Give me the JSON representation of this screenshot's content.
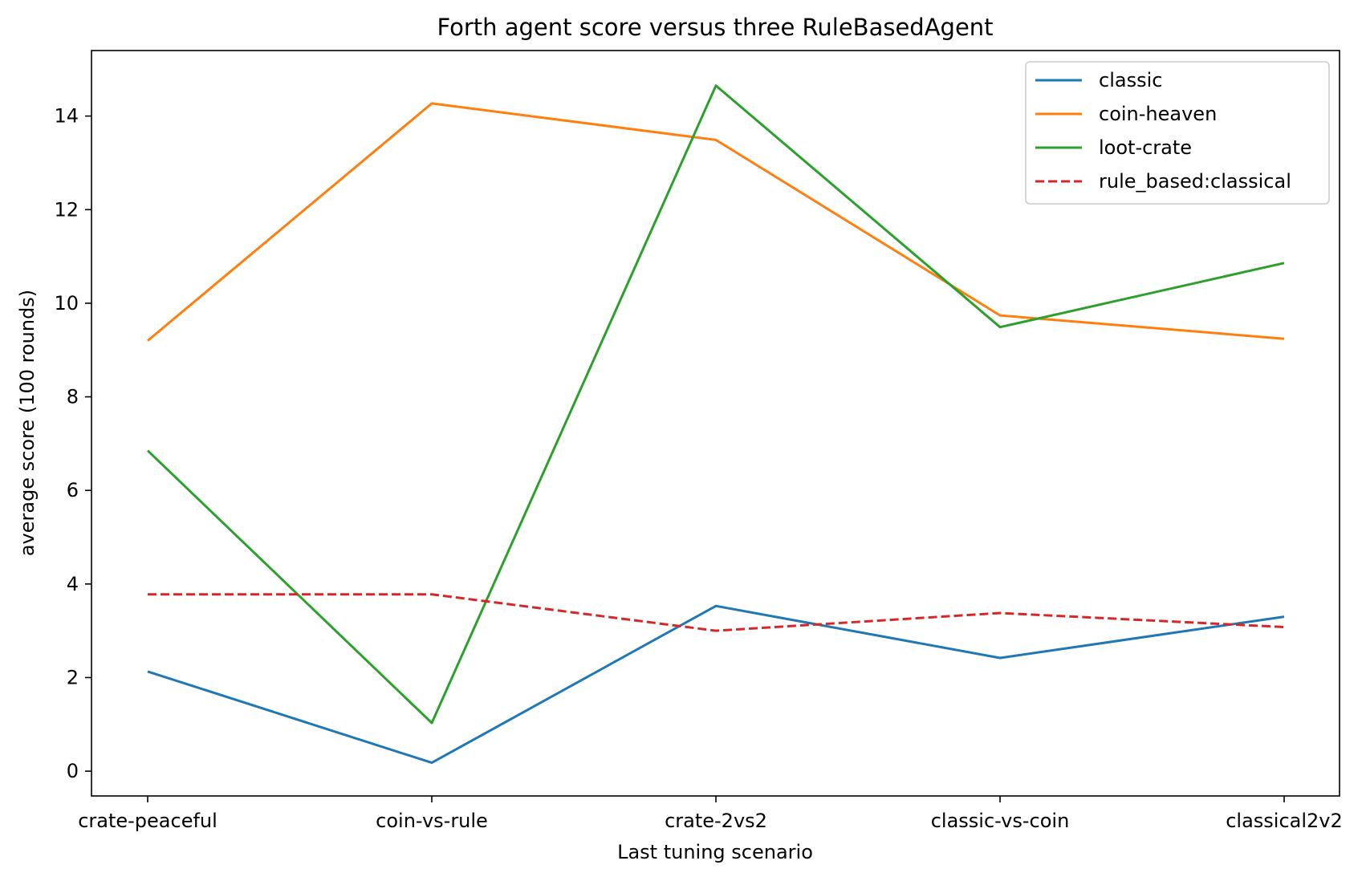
{
  "chart_data": {
    "type": "line",
    "title": "Forth agent score versus three RuleBasedAgent",
    "xlabel": "Last tuning scenario",
    "ylabel": "average score (100 rounds)",
    "categories": [
      "crate-peaceful",
      "coin-vs-rule",
      "crate-2vs2",
      "classic-vs-coin",
      "classical2v2"
    ],
    "ylim": [
      -0.53,
      15.4
    ],
    "yticks": [
      0,
      2,
      4,
      6,
      8,
      10,
      12,
      14
    ],
    "grid": false,
    "legend_position": "top-right",
    "series": [
      {
        "name": "classic",
        "color": "#1f77b4",
        "dash": "solid",
        "values": [
          2.13,
          0.18,
          3.53,
          2.42,
          3.3
        ]
      },
      {
        "name": "coin-heaven",
        "color": "#ff7f0e",
        "dash": "solid",
        "values": [
          9.2,
          14.27,
          13.49,
          9.74,
          9.24
        ]
      },
      {
        "name": "loot-crate",
        "color": "#2ca02c",
        "dash": "solid",
        "values": [
          6.85,
          1.03,
          14.65,
          9.49,
          10.86
        ]
      },
      {
        "name": "rule_based:classical",
        "color": "#d62728",
        "dash": "dashed",
        "values": [
          3.78,
          3.78,
          3.0,
          3.38,
          3.08
        ]
      }
    ]
  }
}
